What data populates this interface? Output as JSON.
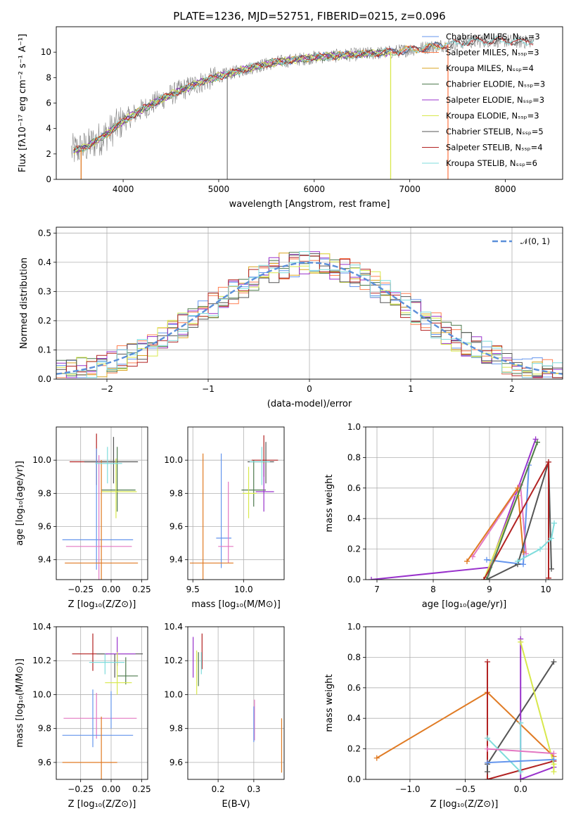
{
  "figure": {
    "title": "PLATE=1236, MJD=52751, FIBERID=0215, z=0.096"
  },
  "colors": {
    "chabrier_miles": "#6495ed",
    "salpeter_miles": "#ff7f50",
    "kroupa_miles": "#daa520",
    "chabrier_elodie": "#4e7a4e",
    "salpeter_elodie": "#9932cc",
    "kroupa_elodie": "#d8e84c",
    "chabrier_stelib": "#555555",
    "salpeter_stelib": "#b22222",
    "kroupa_stelib": "#7fdcdc",
    "data": "#808080",
    "orange": "#e07b24",
    "pink": "#e377c2",
    "yellowgreen": "#c8e84a",
    "normal": "#5b8fd9"
  },
  "chart_data": [
    {
      "id": "spectrum",
      "type": "line",
      "xlabel": "wavelength [Angstrom, rest frame]",
      "ylabel": "Flux [fλ10⁻¹⁷ erg cm⁻² s⁻¹ A⁻¹]",
      "xlim": [
        3300,
        8600
      ],
      "ylim": [
        0,
        12
      ],
      "xticks": [
        4000,
        5000,
        6000,
        7000,
        8000
      ],
      "yticks": [
        0,
        2,
        4,
        6,
        8,
        10
      ],
      "legend": [
        "Chabrier MILES, Nₛₛₚ=3",
        "Salpeter MILES, Nₛₛₚ=3",
        "Kroupa MILES, Nₛₛₚ=4",
        "Chabrier ELODIE, Nₛₛₚ=3",
        "Salpeter ELODIE, Nₛₛₚ=3",
        "Kroupa ELODIE, Nₛₛₚ=3",
        "Chabrier STELIB, Nₛₛₚ=5",
        "Salpeter STELIB, Nₛₛₚ=4",
        "Kroupa STELIB, Nₛₛₚ=6"
      ],
      "legend_placement": "upper right",
      "continuum": {
        "x": [
          3450,
          3600,
          3800,
          4000,
          4200,
          4400,
          4600,
          4800,
          5000,
          5200,
          5400,
          5600,
          5800,
          6000,
          6200,
          6400,
          6600,
          6800,
          7000,
          7200,
          7400,
          7600,
          7800,
          8000,
          8200,
          8300
        ],
        "y": [
          2.2,
          2.5,
          3.4,
          4.6,
          5.5,
          6.3,
          7.0,
          7.6,
          8.1,
          8.5,
          8.9,
          9.2,
          9.4,
          9.6,
          9.7,
          9.8,
          9.9,
          10.0,
          10.2,
          10.4,
          10.6,
          10.8,
          10.9,
          10.9,
          10.8,
          10.9
        ]
      },
      "spikes": [
        {
          "x": 3560,
          "color": "orange"
        },
        {
          "x": 5090,
          "color": "data"
        },
        {
          "x": 6800,
          "color": "kroupa_elodie"
        },
        {
          "x": 7400,
          "color": "salpeter_miles"
        }
      ]
    },
    {
      "id": "residuals",
      "type": "area",
      "xlabel": "(data-model)/error",
      "ylabel": "Normed distribution",
      "xlim": [
        -2.5,
        2.5
      ],
      "ylim": [
        0,
        0.52
      ],
      "xticks": [
        -2,
        -1,
        0,
        1,
        2
      ],
      "yticks": [
        0.0,
        0.1,
        0.2,
        0.3,
        0.4,
        0.5
      ],
      "grid": true,
      "legend": [
        "𝒩(0, 1)"
      ],
      "legend_placement": "upper right"
    },
    {
      "id": "age_vs_Z",
      "type": "scatter",
      "xlabel": "Z [log₁₀(Z/Z⊙)]",
      "ylabel": "age  [log₁₀(age/yr)]",
      "xlim": [
        -0.45,
        0.3
      ],
      "ylim": [
        9.28,
        10.2
      ],
      "xticks": [
        -0.25,
        0.0,
        0.25
      ],
      "yticks": [
        9.4,
        9.6,
        9.8,
        10.0
      ],
      "grid": true,
      "points": [
        {
          "x": -0.12,
          "y": 9.99,
          "dx": [
            -0.22,
            0.17
          ],
          "dy": [
            -0.14,
            0.17
          ],
          "color": "salpeter_stelib"
        },
        {
          "x": 0.02,
          "y": 9.99,
          "dx": [
            -0.24,
            0.2
          ],
          "dy": [
            -0.13,
            0.15
          ],
          "color": "chabrier_stelib"
        },
        {
          "x": 0.05,
          "y": 9.82,
          "dx": [
            -0.13,
            0.15
          ],
          "dy": [
            -0.13,
            0.26
          ],
          "color": "chabrier_elodie"
        },
        {
          "x": 0.04,
          "y": 9.81,
          "dx": [
            -0.12,
            0.17
          ],
          "dy": [
            -0.16,
            0.2
          ],
          "color": "kroupa_elodie"
        },
        {
          "x": -0.12,
          "y": 9.52,
          "dx": [
            -0.28,
            0.3
          ],
          "dy": [
            -0.18,
            0.55
          ],
          "color": "chabrier_miles"
        },
        {
          "x": -0.1,
          "y": 9.48,
          "dx": [
            -0.27,
            0.27
          ],
          "dy": [
            -0.2,
            0.55
          ],
          "color": "pink"
        },
        {
          "x": -0.08,
          "y": 9.38,
          "dx": [
            -0.3,
            0.3
          ],
          "dy": [
            -0.1,
            0.62
          ],
          "color": "orange"
        },
        {
          "x": -0.03,
          "y": 9.98,
          "dx": [
            -0.1,
            0.12
          ],
          "dy": [
            -0.12,
            0.1
          ],
          "color": "kroupa_stelib"
        }
      ]
    },
    {
      "id": "age_vs_mass",
      "type": "scatter",
      "xlabel": "mass [log₁₀(M/M⊙)]",
      "xlim": [
        9.45,
        10.4
      ],
      "ylim": [
        9.28,
        10.2
      ],
      "xticks": [
        9.5,
        10.0
      ],
      "yticks": [
        9.4,
        9.6,
        9.8,
        10.0
      ],
      "grid": true,
      "points": [
        {
          "x": 10.2,
          "y": 10.0,
          "dx": [
            -0.12,
            0.14
          ],
          "dy": [
            -0.1,
            0.15
          ],
          "color": "salpeter_stelib"
        },
        {
          "x": 10.22,
          "y": 9.99,
          "dx": [
            -0.18,
            0.08
          ],
          "dy": [
            -0.13,
            0.12
          ],
          "color": "chabrier_stelib"
        },
        {
          "x": 10.1,
          "y": 9.82,
          "dx": [
            -0.12,
            0.12
          ],
          "dy": [
            -0.1,
            0.18
          ],
          "color": "chabrier_elodie"
        },
        {
          "x": 10.2,
          "y": 9.81,
          "dx": [
            -0.08,
            0.1
          ],
          "dy": [
            -0.12,
            0.17
          ],
          "color": "salpeter_elodie"
        },
        {
          "x": 10.05,
          "y": 9.8,
          "dx": [
            -0.06,
            0.08
          ],
          "dy": [
            -0.15,
            0.16
          ],
          "color": "kroupa_elodie"
        },
        {
          "x": 9.78,
          "y": 9.53,
          "dx": [
            -0.05,
            0.1
          ],
          "dy": [
            -0.18,
            0.51
          ],
          "color": "chabrier_miles"
        },
        {
          "x": 9.85,
          "y": 9.48,
          "dx": [
            -0.1,
            0.05
          ],
          "dy": [
            -0.1,
            0.39
          ],
          "color": "pink"
        },
        {
          "x": 9.6,
          "y": 9.38,
          "dx": [
            -0.13,
            0.3
          ],
          "dy": [
            -0.1,
            0.66
          ],
          "color": "orange"
        },
        {
          "x": 10.18,
          "y": 9.99,
          "dx": [
            -0.12,
            0.08
          ],
          "dy": [
            -0.14,
            0.09
          ],
          "color": "kroupa_stelib"
        }
      ]
    },
    {
      "id": "massweight_vs_age",
      "type": "line",
      "xlabel": "age  [log₁₀(age/yr)]",
      "ylabel": "mass weight",
      "xlim": [
        6.8,
        10.3
      ],
      "ylim": [
        0,
        1.0
      ],
      "xticks": [
        7,
        8,
        9,
        10
      ],
      "yticks": [
        0.0,
        0.2,
        0.4,
        0.6,
        0.8,
        1.0
      ],
      "grid": true,
      "series": [
        {
          "color": "salpeter_elodie",
          "x": [
            6.9,
            9.0,
            9.82
          ],
          "y": [
            0.0,
            0.08,
            0.92
          ]
        },
        {
          "color": "chabrier_miles",
          "x": [
            8.95,
            9.6,
            9.7
          ],
          "y": [
            0.13,
            0.1,
            0.75
          ]
        },
        {
          "color": "pink",
          "x": [
            8.7,
            9.55,
            9.65
          ],
          "y": [
            0.15,
            0.62,
            0.17
          ]
        },
        {
          "color": "orange",
          "x": [
            8.6,
            9.5,
            9.6
          ],
          "y": [
            0.12,
            0.6,
            0.18
          ]
        },
        {
          "color": "kroupa_elodie",
          "x": [
            8.9,
            9.5,
            9.85
          ],
          "y": [
            0.0,
            0.55,
            0.9
          ]
        },
        {
          "color": "chabrier_stelib",
          "x": [
            8.95,
            9.5,
            10.05,
            10.1
          ],
          "y": [
            0.0,
            0.1,
            0.77,
            0.07
          ]
        },
        {
          "color": "salpeter_stelib",
          "x": [
            8.9,
            10.05,
            10.05
          ],
          "y": [
            0.0,
            0.77,
            0.01
          ]
        },
        {
          "color": "kroupa_stelib",
          "x": [
            9.5,
            9.9,
            10.1,
            10.15
          ],
          "y": [
            0.12,
            0.2,
            0.27,
            0.37
          ]
        },
        {
          "color": "chabrier_elodie",
          "x": [
            8.95,
            9.85
          ],
          "y": [
            0.0,
            0.9
          ]
        }
      ]
    },
    {
      "id": "mass_vs_Z",
      "type": "scatter",
      "xlabel": "Z [log₁₀(Z/Z⊙)]",
      "ylabel": "mass [log₁₀(M/M⊙)]",
      "xlim": [
        -0.45,
        0.3
      ],
      "ylim": [
        9.5,
        10.4
      ],
      "xticks": [
        -0.25,
        0.0,
        0.25
      ],
      "yticks": [
        9.6,
        9.8,
        10.0,
        10.2,
        10.4
      ],
      "grid": true,
      "points": [
        {
          "x": -0.15,
          "y": 10.24,
          "dx": [
            -0.17,
            0.12
          ],
          "dy": [
            -0.1,
            0.12
          ],
          "color": "salpeter_stelib"
        },
        {
          "x": 0.03,
          "y": 10.24,
          "dx": [
            -0.15,
            0.23
          ],
          "dy": [
            -0.14,
            0.0
          ],
          "color": "chabrier_stelib"
        },
        {
          "x": 0.05,
          "y": 10.24,
          "dx": [
            -0.1,
            0.15
          ],
          "dy": [
            -0.07,
            0.1
          ],
          "color": "salpeter_elodie"
        },
        {
          "x": 0.12,
          "y": 10.11,
          "dx": [
            -0.07,
            0.1
          ],
          "dy": [
            -0.05,
            0.11
          ],
          "color": "chabrier_elodie"
        },
        {
          "x": 0.05,
          "y": 10.07,
          "dx": [
            -0.1,
            0.12
          ],
          "dy": [
            -0.07,
            0.18
          ],
          "color": "kroupa_elodie"
        },
        {
          "x": -0.05,
          "y": 10.19,
          "dx": [
            -0.13,
            0.16
          ],
          "dy": [
            -0.07,
            0.05
          ],
          "color": "kroupa_stelib"
        },
        {
          "x": -0.12,
          "y": 9.86,
          "dx": [
            -0.27,
            0.33
          ],
          "dy": [
            -0.12,
            0.15
          ],
          "color": "pink"
        },
        {
          "x": -0.15,
          "y": 9.76,
          "dx": [
            -0.25,
            0.33
          ],
          "dy": [
            -0.07,
            0.27
          ],
          "color": "chabrier_miles"
        },
        {
          "x": -0.08,
          "y": 9.6,
          "dx": [
            -0.32,
            0.13
          ],
          "dy": [
            -0.1,
            0.27
          ],
          "color": "orange"
        },
        {
          "x": 0.0,
          "y": 9.94,
          "dx": [
            0,
            0
          ],
          "dy": [
            -0.14,
            0.08
          ],
          "color": "chabrier_miles"
        }
      ]
    },
    {
      "id": "mass_vs_ebv",
      "type": "scatter",
      "xlabel": "E(B-V)",
      "xlim": [
        0.115,
        0.385
      ],
      "ylim": [
        9.5,
        10.4
      ],
      "xticks": [
        0.2,
        0.3
      ],
      "yticks": [
        9.6,
        9.8,
        10.0,
        10.2,
        10.4
      ],
      "grid": true,
      "points": [
        {
          "x": 0.13,
          "y": 10.2,
          "dy": [
            -0.1,
            0.14
          ],
          "color": "salpeter_elodie"
        },
        {
          "x": 0.14,
          "y": 10.12,
          "dy": [
            -0.12,
            0.14
          ],
          "color": "kroupa_elodie"
        },
        {
          "x": 0.145,
          "y": 10.15,
          "dy": [
            -0.1,
            0.1
          ],
          "color": "chabrier_elodie"
        },
        {
          "x": 0.155,
          "y": 10.23,
          "dy": [
            -0.08,
            0.13
          ],
          "color": "salpeter_stelib"
        },
        {
          "x": 0.153,
          "y": 10.17,
          "dy": [
            -0.05,
            0.08
          ],
          "color": "kroupa_stelib"
        },
        {
          "x": 0.302,
          "y": 9.85,
          "dy": [
            -0.12,
            0.12
          ],
          "color": "pink"
        },
        {
          "x": 0.3,
          "y": 9.83,
          "dy": [
            -0.11,
            0.1
          ],
          "color": "chabrier_miles"
        },
        {
          "x": 0.378,
          "y": 9.71,
          "dy": [
            -0.17,
            0.15
          ],
          "color": "orange"
        }
      ]
    },
    {
      "id": "massweight_vs_Z",
      "type": "line",
      "xlabel": "Z [log₁₀(Z/Z⊙)]",
      "ylabel": "mass weight",
      "xlim": [
        -1.4,
        0.38
      ],
      "ylim": [
        0,
        1.0
      ],
      "xticks": [
        -1.0,
        -0.5,
        0.0
      ],
      "yticks": [
        0.0,
        0.2,
        0.4,
        0.6,
        0.8,
        1.0
      ],
      "grid": true,
      "series": [
        {
          "color": "orange",
          "x": [
            -1.3,
            -0.3,
            0.3
          ],
          "y": [
            0.14,
            0.57,
            0.15
          ]
        },
        {
          "color": "salpeter_stelib",
          "x": [
            -0.3,
            -0.3,
            0.3
          ],
          "y": [
            0.77,
            0.0,
            0.12
          ]
        },
        {
          "color": "chabrier_stelib",
          "x": [
            -0.3,
            -0.3,
            0.3
          ],
          "y": [
            0.05,
            0.1,
            0.77
          ]
        },
        {
          "color": "salpeter_elodie",
          "x": [
            0.0,
            0.0,
            0.3
          ],
          "y": [
            0.92,
            0.0,
            0.08
          ]
        },
        {
          "color": "kroupa_elodie",
          "x": [
            0.0,
            0.3,
            0.3
          ],
          "y": [
            0.9,
            0.1,
            0.05
          ]
        },
        {
          "color": "kroupa_stelib",
          "x": [
            -0.3,
            0.0,
            0.0
          ],
          "y": [
            0.27,
            0.05,
            0.37
          ]
        },
        {
          "color": "chabrier_miles",
          "x": [
            -0.3,
            0.3
          ],
          "y": [
            0.11,
            0.13
          ]
        },
        {
          "color": "pink",
          "x": [
            -0.3,
            0.3
          ],
          "y": [
            0.2,
            0.17
          ]
        }
      ]
    }
  ]
}
